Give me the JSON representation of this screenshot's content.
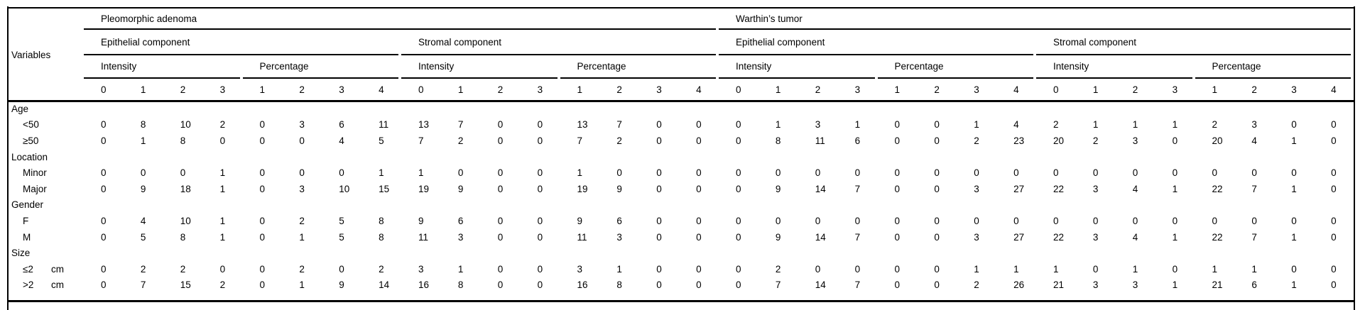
{
  "table": {
    "variables_label": "Variables",
    "groups": [
      {
        "label": "Pleomorphic adenoma",
        "components": [
          {
            "label": "Epithelial component",
            "measures": [
              {
                "label": "Intensity",
                "columns": [
                  "0",
                  "1",
                  "2",
                  "3"
                ]
              },
              {
                "label": "Percentage",
                "columns": [
                  "1",
                  "2",
                  "3",
                  "4"
                ]
              }
            ]
          },
          {
            "label": "Stromal component",
            "measures": [
              {
                "label": "Intensity",
                "columns": [
                  "0",
                  "1",
                  "2",
                  "3"
                ]
              },
              {
                "label": "Percentage",
                "columns": [
                  "1",
                  "2",
                  "3",
                  "4"
                ]
              }
            ]
          }
        ]
      },
      {
        "label": "Warthin’s tumor",
        "components": [
          {
            "label": "Epithelial component",
            "measures": [
              {
                "label": "Intensity",
                "columns": [
                  "0",
                  "1",
                  "2",
                  "3"
                ]
              },
              {
                "label": "Percentage",
                "columns": [
                  "1",
                  "2",
                  "3",
                  "4"
                ]
              }
            ]
          },
          {
            "label": "Stromal component",
            "measures": [
              {
                "label": "Intensity",
                "columns": [
                  "0",
                  "1",
                  "2",
                  "3"
                ]
              },
              {
                "label": "Percentage",
                "columns": [
                  "1",
                  "2",
                  "3",
                  "4"
                ]
              }
            ]
          }
        ]
      }
    ],
    "rows": [
      {
        "type": "section",
        "label": "Age"
      },
      {
        "type": "data",
        "label": "<50",
        "values": [
          0,
          8,
          10,
          2,
          0,
          3,
          6,
          11,
          13,
          7,
          0,
          0,
          13,
          7,
          0,
          0,
          0,
          1,
          3,
          1,
          0,
          0,
          1,
          4,
          2,
          1,
          1,
          1,
          2,
          3,
          0,
          0
        ]
      },
      {
        "type": "data",
        "label": "≥50",
        "values": [
          0,
          1,
          8,
          0,
          0,
          0,
          4,
          5,
          7,
          2,
          0,
          0,
          7,
          2,
          0,
          0,
          0,
          8,
          11,
          6,
          0,
          0,
          2,
          23,
          20,
          2,
          3,
          0,
          20,
          4,
          1,
          0
        ]
      },
      {
        "type": "section",
        "label": "Location"
      },
      {
        "type": "data",
        "label": "Minor",
        "values": [
          0,
          0,
          0,
          1,
          0,
          0,
          0,
          1,
          1,
          0,
          0,
          0,
          1,
          0,
          0,
          0,
          0,
          0,
          0,
          0,
          0,
          0,
          0,
          0,
          0,
          0,
          0,
          0,
          0,
          0,
          0,
          0
        ]
      },
      {
        "type": "data",
        "label": "Major",
        "values": [
          0,
          9,
          18,
          1,
          0,
          3,
          10,
          15,
          19,
          9,
          0,
          0,
          19,
          9,
          0,
          0,
          0,
          9,
          14,
          7,
          0,
          0,
          3,
          27,
          22,
          3,
          4,
          1,
          22,
          7,
          1,
          0
        ]
      },
      {
        "type": "section",
        "label": "Gender"
      },
      {
        "type": "data",
        "label": "F",
        "values": [
          0,
          4,
          10,
          1,
          0,
          2,
          5,
          8,
          9,
          6,
          0,
          0,
          9,
          6,
          0,
          0,
          0,
          0,
          0,
          0,
          0,
          0,
          0,
          0,
          0,
          0,
          0,
          0,
          0,
          0,
          0,
          0
        ]
      },
      {
        "type": "data",
        "label": "M",
        "values": [
          0,
          5,
          8,
          1,
          0,
          1,
          5,
          8,
          11,
          3,
          0,
          0,
          11,
          3,
          0,
          0,
          0,
          9,
          14,
          7,
          0,
          0,
          3,
          27,
          22,
          3,
          4,
          1,
          22,
          7,
          1,
          0
        ]
      },
      {
        "type": "section",
        "label": "Size"
      },
      {
        "type": "data",
        "label": "≤2",
        "unit": "cm",
        "values": [
          0,
          2,
          2,
          0,
          0,
          2,
          0,
          2,
          3,
          1,
          0,
          0,
          3,
          1,
          0,
          0,
          0,
          2,
          0,
          0,
          0,
          0,
          1,
          1,
          1,
          0,
          1,
          0,
          1,
          1,
          0,
          0
        ]
      },
      {
        "type": "data",
        "label": ">2",
        "unit": "cm",
        "values": [
          0,
          7,
          15,
          2,
          0,
          1,
          9,
          14,
          16,
          8,
          0,
          0,
          16,
          8,
          0,
          0,
          0,
          7,
          14,
          7,
          0,
          0,
          2,
          26,
          21,
          3,
          3,
          1,
          21,
          6,
          1,
          0
        ]
      }
    ]
  }
}
